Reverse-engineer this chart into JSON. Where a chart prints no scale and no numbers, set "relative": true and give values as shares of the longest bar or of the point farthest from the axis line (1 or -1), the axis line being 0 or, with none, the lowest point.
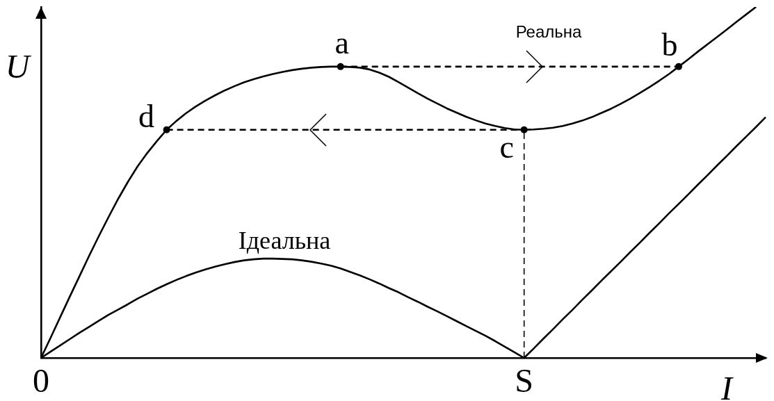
{
  "chart_data": {
    "type": "line",
    "relative": true,
    "xlabel": "I",
    "ylabel": "U",
    "tick_labels": "x",
    "categories": [
      "0",
      null,
      null,
      null,
      null,
      null,
      null,
      null,
      null,
      null,
      null,
      null,
      null,
      null,
      null,
      null,
      null,
      null,
      null,
      null,
      null,
      null,
      null,
      null,
      null,
      null,
      null,
      null,
      null,
      null,
      null,
      null,
      null,
      null,
      null,
      null,
      null,
      null,
      null,
      null,
      null,
      null,
      null,
      null,
      null,
      null,
      null,
      null,
      null,
      null,
      "S",
      null,
      null,
      null,
      null,
      null,
      null,
      null,
      null,
      null,
      null,
      null,
      null,
      null,
      null,
      null,
      null,
      null,
      null,
      null,
      null,
      null,
      null,
      null,
      null,
      null
    ],
    "series": [
      {
        "color": "#000000",
        "values": [
          0,
          0.058,
          0.117,
          0.176,
          0.234,
          0.292,
          0.348,
          0.402,
          0.454,
          0.502,
          0.546,
          0.584,
          0.618,
          0.65,
          0.675,
          0.697,
          0.716,
          0.733,
          0.748,
          0.762,
          0.774,
          0.785,
          0.794,
          0.802,
          0.809,
          0.815,
          0.82,
          0.824,
          0.827,
          0.829,
          0.83,
          0.83,
          0.829,
          0.827,
          0.822,
          0.813,
          0.801,
          0.786,
          0.77,
          0.754,
          0.739,
          0.725,
          0.711,
          0.699,
          0.687,
          0.677,
          0.668,
          0.661,
          0.655,
          0.651,
          0.65,
          0.651,
          0.653,
          0.656,
          0.661,
          0.668,
          0.676,
          0.686,
          0.698,
          0.71,
          0.724,
          0.739,
          0.755,
          0.772,
          0.79,
          0.809,
          0.83,
          0.851,
          0.873,
          0.894,
          0.915,
          0.936,
          0.958,
          0.979,
          1,
          null
        ]
      },
      {
        "name": "Ідеальна",
        "color": "#000000",
        "values": [
          0,
          0.018,
          0.036,
          0.054,
          0.072,
          0.089,
          0.106,
          0.123,
          0.138,
          0.153,
          0.169,
          0.183,
          0.197,
          0.21,
          0.222,
          0.233,
          0.243,
          0.252,
          0.26,
          0.267,
          0.273,
          0.278,
          0.281,
          0.283,
          0.283,
          0.282,
          0.281,
          0.278,
          0.274,
          0.269,
          0.263,
          0.255,
          0.245,
          0.235,
          0.224,
          0.212,
          0.199,
          0.187,
          0.173,
          0.16,
          0.146,
          0.133,
          0.119,
          0.105,
          0.091,
          0.077,
          0.063,
          0.048,
          0.032,
          0.016,
          0,
          0.027,
          0.055,
          0.082,
          0.11,
          0.137,
          0.165,
          0.192,
          0.22,
          0.247,
          0.274,
          0.302,
          0.329,
          0.357,
          0.384,
          0.412,
          0.439,
          0.466,
          0.494,
          0.521,
          0.549,
          0.576,
          0.604,
          0.631,
          0.658,
          0.686
        ]
      },
      {
        "name": "Реальна",
        "color": "#000000",
        "line_style": "dashed",
        "values": [
          null,
          null,
          null,
          null,
          null,
          null,
          null,
          null,
          null,
          null,
          null,
          null,
          null,
          null,
          null,
          null,
          null,
          null,
          null,
          null,
          null,
          null,
          null,
          null,
          null,
          null,
          null,
          null,
          null,
          null,
          null,
          0.83,
          0.83,
          0.83,
          0.83,
          0.83,
          0.83,
          0.83,
          0.83,
          0.83,
          0.83,
          0.83,
          0.83,
          0.83,
          0.83,
          0.83,
          0.83,
          0.83,
          0.83,
          0.83,
          0.83,
          0.83,
          0.83,
          0.83,
          0.83,
          0.83,
          0.83,
          0.83,
          0.83,
          0.83,
          0.83,
          0.83,
          0.83,
          0.83,
          0.83,
          0.83,
          0.83,
          null,
          null,
          null,
          null,
          null,
          null,
          null,
          null,
          null
        ]
      },
      {
        "color": "#000000",
        "line_style": "dashed",
        "values": [
          null,
          null,
          null,
          null,
          null,
          null,
          null,
          null,
          null,
          null,
          null,
          null,
          null,
          0.65,
          0.65,
          0.65,
          0.65,
          0.65,
          0.65,
          0.65,
          0.65,
          0.65,
          0.65,
          0.65,
          0.65,
          0.65,
          0.65,
          0.65,
          0.65,
          0.65,
          0.65,
          0.65,
          0.65,
          0.65,
          0.65,
          0.65,
          0.65,
          0.65,
          0.65,
          0.65,
          0.65,
          0.65,
          0.65,
          0.65,
          0.65,
          0.65,
          0.65,
          0.65,
          0.65,
          0.65,
          0.65,
          null,
          null,
          null,
          null,
          null,
          null,
          null,
          null,
          null,
          null,
          null,
          null,
          null,
          null,
          null,
          null,
          null,
          null,
          null,
          null,
          null,
          null,
          null,
          null,
          null
        ]
      },
      {
        "color": "#000000",
        "line_style": "dashed",
        "x": [
          "S",
          "S"
        ],
        "values": [
          0,
          0.65
        ]
      },
      {
        "type": "scatter",
        "color": "#000000",
        "marker": "circle",
        "values": [
          null,
          null,
          null,
          null,
          null,
          null,
          null,
          null,
          null,
          null,
          null,
          null,
          null,
          0.65,
          null,
          null,
          null,
          null,
          null,
          null,
          null,
          null,
          null,
          null,
          null,
          null,
          null,
          null,
          null,
          null,
          null,
          0.83,
          null,
          null,
          null,
          null,
          null,
          null,
          null,
          null,
          null,
          null,
          null,
          null,
          null,
          null,
          null,
          null,
          null,
          null,
          0.65,
          null,
          null,
          null,
          null,
          null,
          null,
          null,
          null,
          null,
          null,
          null,
          null,
          null,
          null,
          null,
          0.83,
          null,
          null,
          null,
          null,
          null,
          null,
          null,
          null,
          null
        ]
      }
    ],
    "annotations": [
      "d",
      "a",
      "c",
      "b"
    ]
  }
}
